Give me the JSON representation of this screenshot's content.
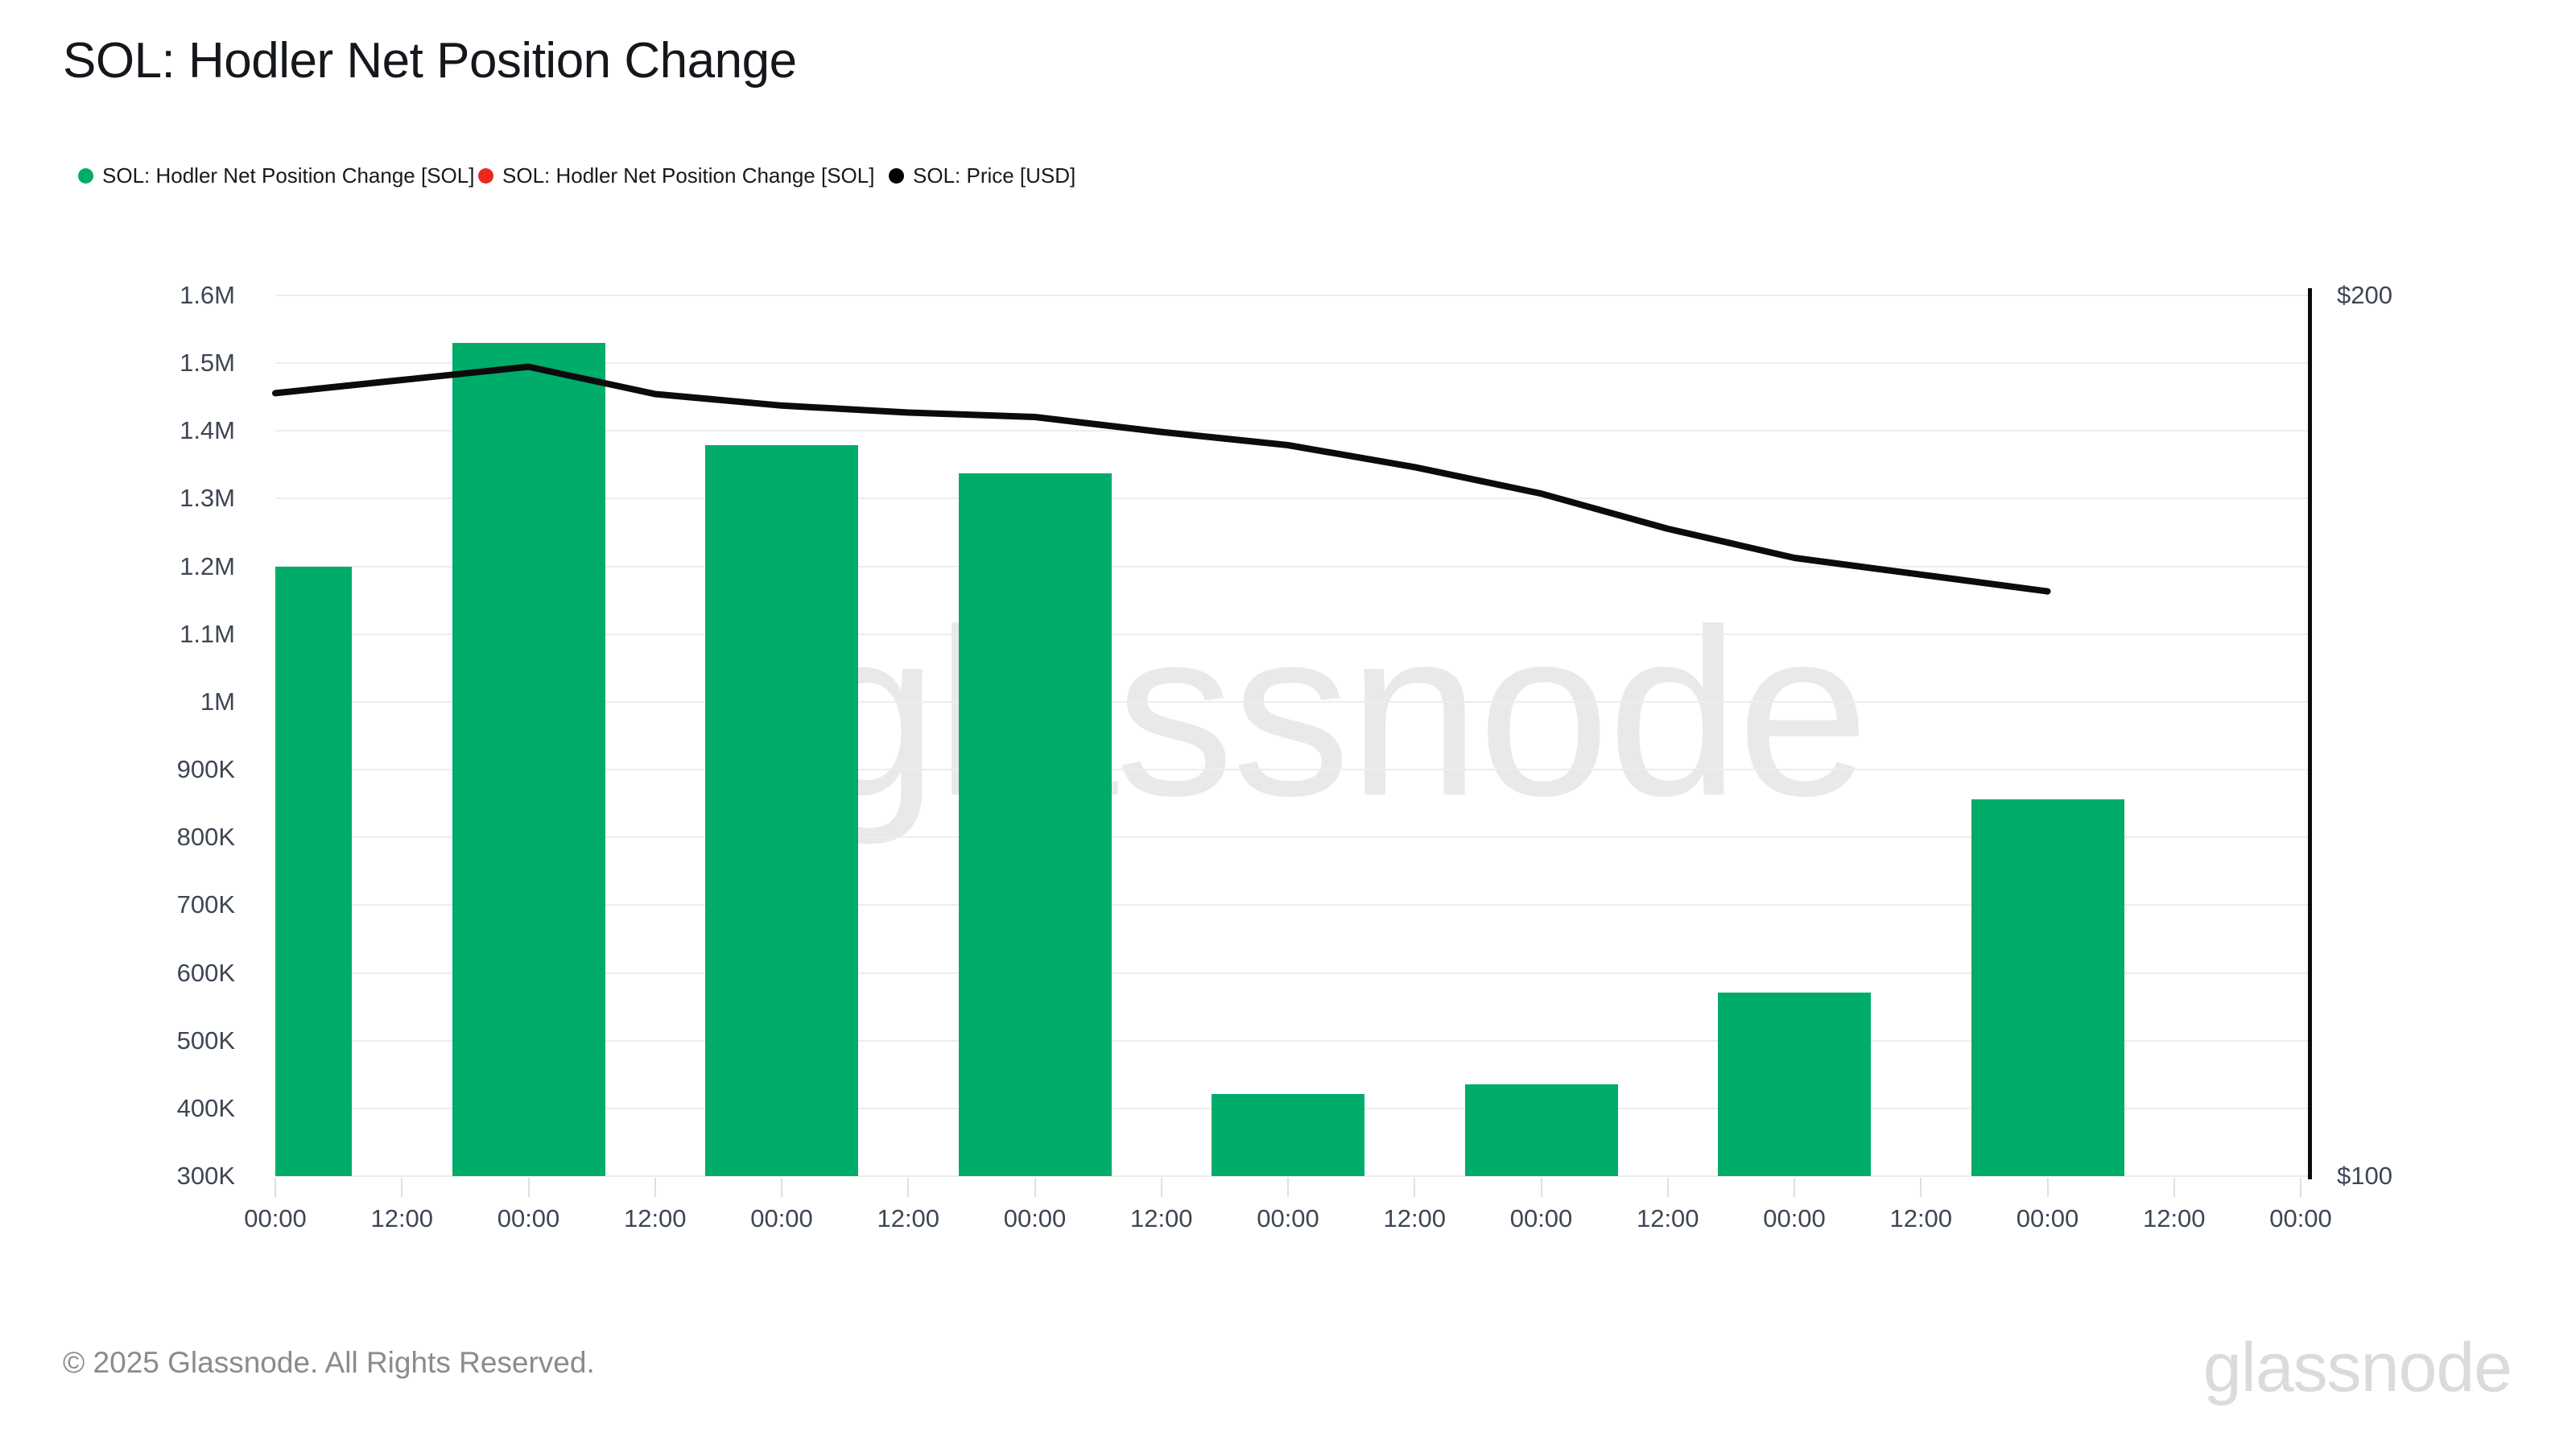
{
  "page": {
    "title": "SOL: Hodler Net Position Change",
    "footer_copyright": "© 2025 Glassnode. All Rights Reserved.",
    "brand_wordmark": "glassnode",
    "watermark_text": "glassnode"
  },
  "legend": {
    "items": [
      {
        "label": "SOL: Hodler Net Position Change [SOL]",
        "color": "#00ac6a",
        "marker": "circle"
      },
      {
        "label": "SOL: Hodler Net Position Change [SOL]",
        "color": "#ec281c",
        "marker": "circle"
      },
      {
        "label": "SOL: Price [USD]",
        "color": "#000000",
        "marker": "circle"
      }
    ]
  },
  "chart_data": {
    "type": "bar+line",
    "title": "SOL: Hodler Net Position Change",
    "legend_position": "top-left",
    "grid": "horizontal-only",
    "x_axis": {
      "tick_labels": [
        "00:00",
        "12:00",
        "00:00",
        "12:00",
        "00:00",
        "12:00",
        "00:00",
        "12:00",
        "00:00",
        "12:00",
        "00:00",
        "12:00",
        "00:00",
        "12:00",
        "00:00",
        "12:00",
        "00:00"
      ]
    },
    "left_axis": {
      "min": 300000,
      "max": 1600000,
      "tick_step": 100000,
      "tick_labels": [
        "1.6M",
        "1.5M",
        "1.4M",
        "1.3M",
        "1.2M",
        "1.1M",
        "1M",
        "900K",
        "800K",
        "700K",
        "600K",
        "500K",
        "400K",
        "300K"
      ]
    },
    "right_axis": {
      "min": 100,
      "max": 200,
      "labels": [
        "$200",
        "$100"
      ]
    },
    "series": [
      {
        "name": "SOL: Hodler Net Position Change [SOL]",
        "type": "bar",
        "color": "#00ac6a",
        "x_indices": [
          0,
          2,
          4,
          6,
          8,
          10,
          12,
          14
        ],
        "values": [
          1199000,
          1530000,
          1379000,
          1337000,
          421000,
          436000,
          571000,
          856000
        ]
      },
      {
        "name": "SOL: Price [USD]",
        "type": "line",
        "color": "#0b0b0b",
        "x_indices": [
          0,
          1,
          2,
          3,
          4,
          5,
          6,
          7,
          8,
          9,
          10,
          11,
          12,
          13,
          14
        ],
        "values": [
          188.9,
          190.4,
          191.9,
          188.8,
          187.5,
          186.7,
          186.2,
          184.5,
          183.0,
          180.5,
          177.5,
          173.5,
          170.2,
          168.3,
          166.4
        ]
      }
    ],
    "watermark": "glassnode"
  },
  "colors": {
    "bar_green": "#00ac6a",
    "legend_red": "#ec281c",
    "price_line_black": "#0b0b0b",
    "gridline": "#ededed",
    "axis_label": "#3d4654",
    "footer_gray": "#8b8b8b",
    "brand_gray": "#dbdbdb",
    "watermark_gray": "#e9e9e9"
  }
}
